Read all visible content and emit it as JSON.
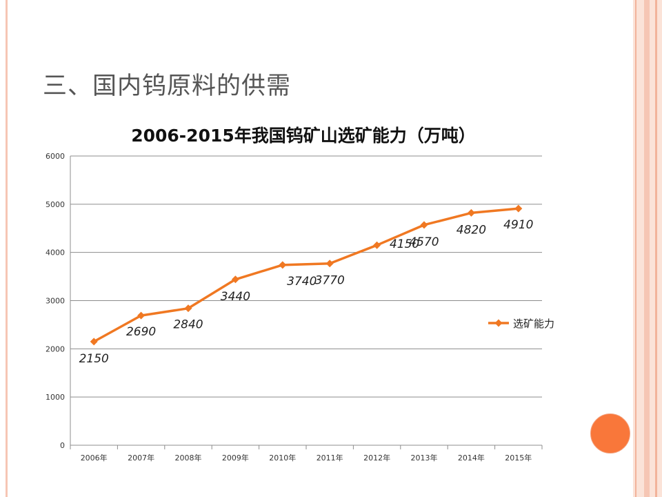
{
  "slide": {
    "title": "三、国内钨原料的供需"
  },
  "colors": {
    "series": "#f07822",
    "accent_circle": "#f9773a",
    "frame": "#f6c6b4"
  },
  "chart_data": {
    "type": "line",
    "title": "2006-2015年我国钨矿山选矿能力（万吨）",
    "categories": [
      "2006年",
      "2007年",
      "2008年",
      "2009年",
      "2010年",
      "2011年",
      "2012年",
      "2013年",
      "2014年",
      "2015年"
    ],
    "series": [
      {
        "name": "选矿能力",
        "values": [
          2150,
          2690,
          2840,
          3440,
          3740,
          3770,
          4150,
          4570,
          4820,
          4910
        ]
      }
    ],
    "ylim": [
      0,
      6000
    ],
    "yticks": [
      0,
      1000,
      2000,
      3000,
      4000,
      5000,
      6000
    ],
    "grid": true,
    "legend": "right",
    "data_labels": true
  }
}
